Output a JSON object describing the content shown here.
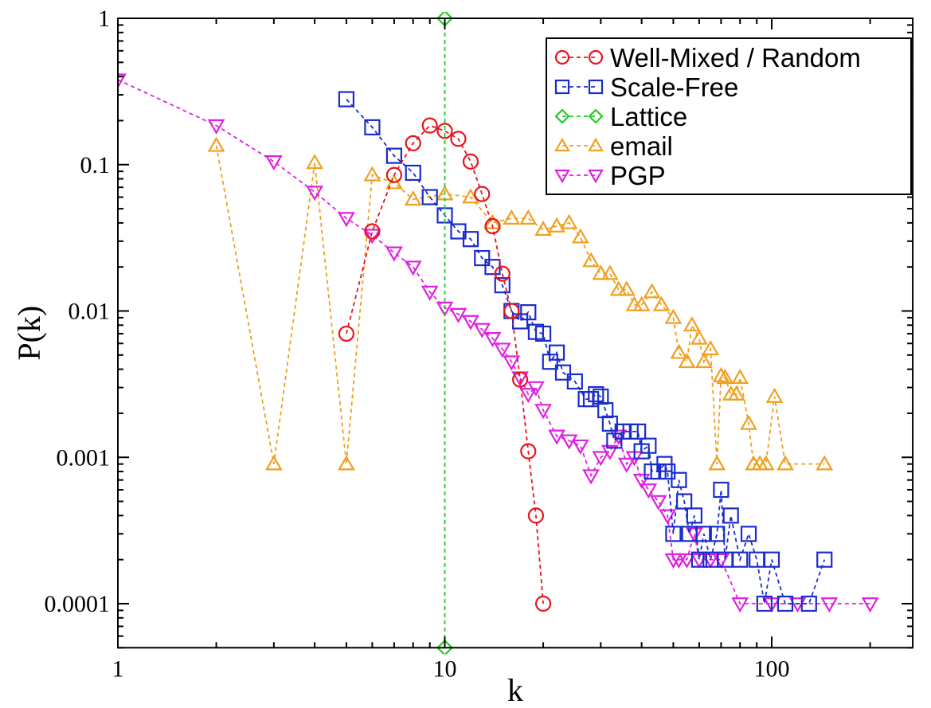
{
  "chart_data": {
    "type": "scatter",
    "xlabel": "k",
    "ylabel": "P(k)",
    "x_scale": "log",
    "y_scale": "log",
    "xlim": [
      1,
      270
    ],
    "ylim": [
      5e-05,
      1.0
    ],
    "x_ticks": [
      {
        "value": 1,
        "label": "1"
      },
      {
        "value": 10,
        "label": "10"
      },
      {
        "value": 100,
        "label": "100"
      }
    ],
    "y_ticks": [
      {
        "value": 1,
        "label": "1"
      },
      {
        "value": 0.1,
        "label": "0.1"
      },
      {
        "value": 0.01,
        "label": "0.01"
      },
      {
        "value": 0.001,
        "label": "0.001"
      },
      {
        "value": 0.0001,
        "label": "0.0001"
      }
    ],
    "grid": false,
    "legend_position": "top-right",
    "series": [
      {
        "name": "Well-Mixed / Random",
        "color": "#e8141c",
        "marker": "circle",
        "points": [
          [
            5,
            0.007
          ],
          [
            6,
            0.035
          ],
          [
            7,
            0.085
          ],
          [
            8,
            0.14
          ],
          [
            9,
            0.185
          ],
          [
            10,
            0.17
          ],
          [
            11,
            0.15
          ],
          [
            12,
            0.105
          ],
          [
            13,
            0.063
          ],
          [
            14,
            0.038
          ],
          [
            15,
            0.018
          ],
          [
            16,
            0.01
          ],
          [
            17,
            0.0034
          ],
          [
            18,
            0.0011
          ],
          [
            19,
            0.0004
          ],
          [
            20,
            0.0001
          ]
        ]
      },
      {
        "name": "Scale-Free",
        "color": "#1a2ccc",
        "marker": "square",
        "points": [
          [
            5,
            0.28
          ],
          [
            6,
            0.18
          ],
          [
            7,
            0.115
          ],
          [
            8,
            0.088
          ],
          [
            9,
            0.06
          ],
          [
            10,
            0.045
          ],
          [
            11,
            0.035
          ],
          [
            12,
            0.031
          ],
          [
            13,
            0.023
          ],
          [
            14,
            0.02
          ],
          [
            15,
            0.015
          ],
          [
            16,
            0.01
          ],
          [
            17,
            0.0085
          ],
          [
            18,
            0.0098
          ],
          [
            19,
            0.0072
          ],
          [
            20,
            0.007
          ],
          [
            21,
            0.0045
          ],
          [
            22,
            0.0052
          ],
          [
            23,
            0.0038
          ],
          [
            25,
            0.0033
          ],
          [
            27,
            0.0025
          ],
          [
            28,
            0.0025
          ],
          [
            29,
            0.0027
          ],
          [
            30,
            0.0026
          ],
          [
            31,
            0.0021
          ],
          [
            32,
            0.0017
          ],
          [
            33,
            0.0013
          ],
          [
            35,
            0.0015
          ],
          [
            37,
            0.0015
          ],
          [
            39,
            0.0015
          ],
          [
            40,
            0.0011
          ],
          [
            42,
            0.0012
          ],
          [
            43,
            0.0008
          ],
          [
            45,
            0.0008
          ],
          [
            47,
            0.0009
          ],
          [
            48,
            0.0008
          ],
          [
            50,
            0.0003
          ],
          [
            52,
            0.0007
          ],
          [
            54,
            0.0005
          ],
          [
            56,
            0.0003
          ],
          [
            58,
            0.0004
          ],
          [
            60,
            0.0002
          ],
          [
            62,
            0.0003
          ],
          [
            65,
            0.0002
          ],
          [
            68,
            0.0003
          ],
          [
            70,
            0.0006
          ],
          [
            72,
            0.0002
          ],
          [
            75,
            0.0004
          ],
          [
            80,
            0.0002
          ],
          [
            85,
            0.0003
          ],
          [
            90,
            0.0002
          ],
          [
            95,
            0.0001
          ],
          [
            100,
            0.0002
          ],
          [
            110,
            0.0001
          ],
          [
            130,
            0.0001
          ],
          [
            145,
            0.0002
          ]
        ]
      },
      {
        "name": "Lattice",
        "color": "#22cc22",
        "marker": "diamond",
        "points": [
          [
            10,
            1.0
          ],
          [
            10,
            5e-05
          ]
        ]
      },
      {
        "name": "email",
        "color": "#f0a020",
        "marker": "triangle-up",
        "points": [
          [
            2,
            0.135
          ],
          [
            3,
            0.0009
          ],
          [
            4,
            0.103
          ],
          [
            5,
            0.0009
          ],
          [
            6,
            0.085
          ],
          [
            7,
            0.075
          ],
          [
            8,
            0.058
          ],
          [
            10,
            0.063
          ],
          [
            12,
            0.06
          ],
          [
            14,
            0.04
          ],
          [
            16,
            0.043
          ],
          [
            18,
            0.043
          ],
          [
            20,
            0.036
          ],
          [
            22,
            0.038
          ],
          [
            24,
            0.04
          ],
          [
            26,
            0.032
          ],
          [
            28,
            0.022
          ],
          [
            30,
            0.018
          ],
          [
            32,
            0.018
          ],
          [
            34,
            0.014
          ],
          [
            36,
            0.014
          ],
          [
            38,
            0.011
          ],
          [
            40,
            0.011
          ],
          [
            43,
            0.0135
          ],
          [
            46,
            0.011
          ],
          [
            50,
            0.009
          ],
          [
            52,
            0.0052
          ],
          [
            55,
            0.0045
          ],
          [
            57,
            0.008
          ],
          [
            60,
            0.0065
          ],
          [
            62,
            0.0045
          ],
          [
            65,
            0.0055
          ],
          [
            68,
            0.0009
          ],
          [
            70,
            0.0036
          ],
          [
            72,
            0.0035
          ],
          [
            75,
            0.0027
          ],
          [
            78,
            0.0027
          ],
          [
            80,
            0.0035
          ],
          [
            85,
            0.0017
          ],
          [
            88,
            0.0009
          ],
          [
            92,
            0.0009
          ],
          [
            96,
            0.0009
          ],
          [
            102,
            0.0026
          ],
          [
            110,
            0.0009
          ],
          [
            145,
            0.0009
          ]
        ]
      },
      {
        "name": "PGP",
        "color": "#e020e0",
        "marker": "triangle-down",
        "points": [
          [
            1,
            0.38
          ],
          [
            2,
            0.185
          ],
          [
            3,
            0.105
          ],
          [
            4,
            0.065
          ],
          [
            5,
            0.043
          ],
          [
            6,
            0.033
          ],
          [
            7,
            0.025
          ],
          [
            8,
            0.02
          ],
          [
            9,
            0.0135
          ],
          [
            10,
            0.0105
          ],
          [
            11,
            0.0095
          ],
          [
            12,
            0.0085
          ],
          [
            13,
            0.0075
          ],
          [
            14,
            0.0065
          ],
          [
            15,
            0.0055
          ],
          [
            16,
            0.0045
          ],
          [
            17,
            0.0035
          ],
          [
            18,
            0.0027
          ],
          [
            19,
            0.003
          ],
          [
            20,
            0.0021
          ],
          [
            22,
            0.0014
          ],
          [
            24,
            0.0013
          ],
          [
            26,
            0.0012
          ],
          [
            28,
            0.00075
          ],
          [
            30,
            0.001
          ],
          [
            32,
            0.0011
          ],
          [
            34,
            0.0014
          ],
          [
            36,
            0.0009
          ],
          [
            38,
            0.001
          ],
          [
            40,
            0.0007
          ],
          [
            42,
            0.0006
          ],
          [
            45,
            0.0005
          ],
          [
            48,
            0.0004
          ],
          [
            50,
            0.0002
          ],
          [
            52,
            0.0002
          ],
          [
            55,
            0.0002
          ],
          [
            58,
            0.0003
          ],
          [
            60,
            0.0002
          ],
          [
            65,
            0.0002
          ],
          [
            70,
            0.0002
          ],
          [
            80,
            0.0001
          ],
          [
            100,
            0.0001
          ],
          [
            120,
            0.0001
          ],
          [
            150,
            0.0001
          ],
          [
            200,
            0.0001
          ]
        ]
      }
    ]
  }
}
